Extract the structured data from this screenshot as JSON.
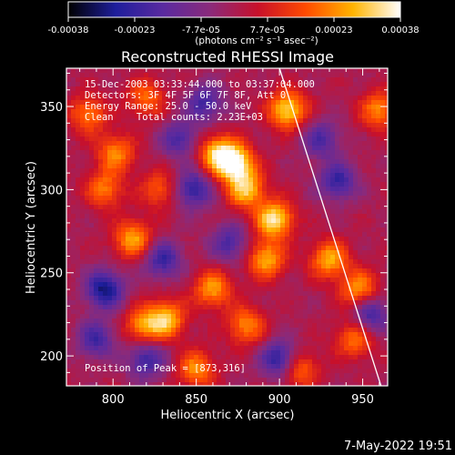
{
  "chart_data": {
    "type": "heatmap",
    "title": "Reconstructed RHESSI Image",
    "xlabel": "Heliocentric X (arcsec)",
    "ylabel": "Heliocentric Y (arcsec)",
    "xlim": [
      772,
      965
    ],
    "ylim": [
      182,
      373
    ],
    "x_ticks": [
      "800",
      "850",
      "900",
      "950"
    ],
    "y_ticks": [
      "200",
      "250",
      "300",
      "350"
    ],
    "colorbar": {
      "unit_line": "(photons cm⁻² s⁻¹ asec⁻²)",
      "tick_labels": [
        "-0.00038",
        "-0.00023",
        "-7.7e-05",
        "7.7e-05",
        "0.00023",
        "0.00038"
      ],
      "range": [
        -0.00038,
        0.00038
      ],
      "colormap": [
        "#000000",
        "#1e1e9c",
        "#5a2aa0",
        "#8b2a7a",
        "#c8102a",
        "#ff4a00",
        "#ffb400",
        "#ffffff"
      ]
    },
    "annotations": {
      "lines": [
        "15-Dec-2003 03:33:44.000 to 03:37:04.000",
        "Detectors: 3F 4F 5F 6F 7F 8F, Att 0",
        "Energy Range: 25.0 - 50.0 keV",
        "Clean    Total counts: 2.23E+03"
      ],
      "peak": "Position of Peak = [873,316]"
    },
    "limb_line": [
      [
        900,
        373
      ],
      [
        961,
        182
      ]
    ],
    "hot_spots": [
      {
        "x": 873,
        "y": 316,
        "v": 1.0
      },
      {
        "x": 905,
        "y": 348,
        "v": 0.85
      },
      {
        "x": 897,
        "y": 282,
        "v": 0.9
      },
      {
        "x": 880,
        "y": 300,
        "v": 0.75
      },
      {
        "x": 862,
        "y": 322,
        "v": 0.7
      },
      {
        "x": 892,
        "y": 258,
        "v": 0.7
      },
      {
        "x": 860,
        "y": 240,
        "v": 0.65
      },
      {
        "x": 832,
        "y": 222,
        "v": 0.75
      },
      {
        "x": 812,
        "y": 270,
        "v": 0.7
      },
      {
        "x": 818,
        "y": 218,
        "v": 0.6
      },
      {
        "x": 850,
        "y": 192,
        "v": 0.6
      },
      {
        "x": 880,
        "y": 218,
        "v": 0.6
      },
      {
        "x": 912,
        "y": 192,
        "v": 0.55
      },
      {
        "x": 930,
        "y": 258,
        "v": 0.7
      },
      {
        "x": 948,
        "y": 240,
        "v": 0.65
      },
      {
        "x": 960,
        "y": 348,
        "v": 0.6
      },
      {
        "x": 795,
        "y": 300,
        "v": 0.55
      },
      {
        "x": 785,
        "y": 345,
        "v": 0.55
      },
      {
        "x": 820,
        "y": 355,
        "v": 0.5
      },
      {
        "x": 802,
        "y": 322,
        "v": 0.6
      },
      {
        "x": 828,
        "y": 300,
        "v": 0.45
      },
      {
        "x": 945,
        "y": 210,
        "v": 0.55
      }
    ],
    "cold_spots": [
      {
        "x": 795,
        "y": 240,
        "v": -0.8
      },
      {
        "x": 830,
        "y": 258,
        "v": -0.6
      },
      {
        "x": 848,
        "y": 300,
        "v": -0.65
      },
      {
        "x": 820,
        "y": 198,
        "v": -0.6
      },
      {
        "x": 900,
        "y": 198,
        "v": -0.7
      },
      {
        "x": 935,
        "y": 305,
        "v": -0.6
      },
      {
        "x": 925,
        "y": 330,
        "v": -0.5
      },
      {
        "x": 855,
        "y": 352,
        "v": -0.55
      },
      {
        "x": 790,
        "y": 210,
        "v": -0.55
      },
      {
        "x": 955,
        "y": 225,
        "v": -0.6
      },
      {
        "x": 870,
        "y": 268,
        "v": -0.5
      },
      {
        "x": 840,
        "y": 330,
        "v": -0.5
      }
    ]
  },
  "footer": {
    "date": "7-May-2022 19:51"
  }
}
